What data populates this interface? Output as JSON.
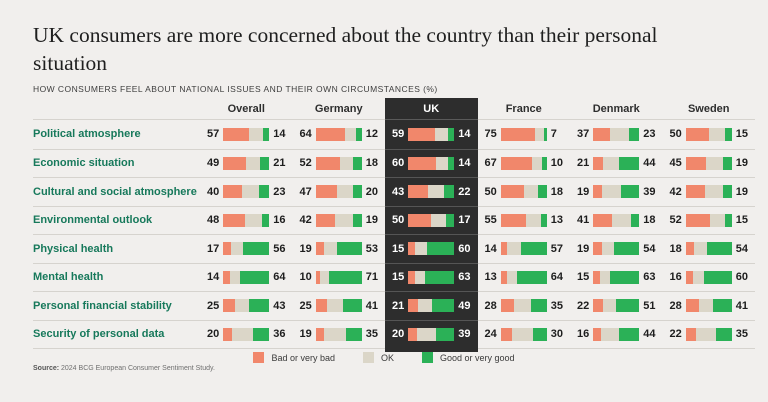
{
  "header": {
    "title": "UK consumers are more concerned about the country than their personal situation",
    "subtitle": "HOW CONSUMERS FEEL ABOUT NATIONAL ISSUES AND THEIR OWN CIRCUMSTANCES (%)"
  },
  "chart_data": {
    "type": "bar",
    "variant": "horizontal-100pct-stacked-small-multiples",
    "unit": "%",
    "columns": [
      "Overall",
      "Germany",
      "UK",
      "France",
      "Denmark",
      "Sweden"
    ],
    "highlighted_column": "UK",
    "segment_keys": [
      "bad",
      "ok",
      "good"
    ],
    "note": "ok = 100 - bad - good",
    "rows": [
      {
        "label": "Political atmosphere",
        "values": [
          {
            "bad": 57,
            "good": 14
          },
          {
            "bad": 64,
            "good": 12
          },
          {
            "bad": 59,
            "good": 14
          },
          {
            "bad": 75,
            "good": 7
          },
          {
            "bad": 37,
            "good": 23
          },
          {
            "bad": 50,
            "good": 15
          }
        ]
      },
      {
        "label": "Economic situation",
        "values": [
          {
            "bad": 49,
            "good": 21
          },
          {
            "bad": 52,
            "good": 18
          },
          {
            "bad": 60,
            "good": 14
          },
          {
            "bad": 67,
            "good": 10
          },
          {
            "bad": 21,
            "good": 44
          },
          {
            "bad": 45,
            "good": 19
          }
        ]
      },
      {
        "label": "Cultural and social atmosphere",
        "values": [
          {
            "bad": 40,
            "good": 23
          },
          {
            "bad": 47,
            "good": 20
          },
          {
            "bad": 43,
            "good": 22
          },
          {
            "bad": 50,
            "good": 18
          },
          {
            "bad": 19,
            "good": 39
          },
          {
            "bad": 42,
            "good": 19
          }
        ]
      },
      {
        "label": "Environmental outlook",
        "values": [
          {
            "bad": 48,
            "good": 16
          },
          {
            "bad": 42,
            "good": 19
          },
          {
            "bad": 50,
            "good": 17
          },
          {
            "bad": 55,
            "good": 13
          },
          {
            "bad": 41,
            "good": 18
          },
          {
            "bad": 52,
            "good": 15
          }
        ]
      },
      {
        "label": "Physical health",
        "values": [
          {
            "bad": 17,
            "good": 56
          },
          {
            "bad": 19,
            "good": 53
          },
          {
            "bad": 15,
            "good": 60
          },
          {
            "bad": 14,
            "good": 57
          },
          {
            "bad": 19,
            "good": 54
          },
          {
            "bad": 18,
            "good": 54
          }
        ]
      },
      {
        "label": "Mental health",
        "values": [
          {
            "bad": 14,
            "good": 64
          },
          {
            "bad": 10,
            "good": 71
          },
          {
            "bad": 15,
            "good": 63
          },
          {
            "bad": 13,
            "good": 64
          },
          {
            "bad": 15,
            "good": 63
          },
          {
            "bad": 16,
            "good": 60
          }
        ]
      },
      {
        "label": "Personal financial stability",
        "values": [
          {
            "bad": 25,
            "good": 43
          },
          {
            "bad": 25,
            "good": 41
          },
          {
            "bad": 21,
            "good": 49
          },
          {
            "bad": 28,
            "good": 35
          },
          {
            "bad": 22,
            "good": 51
          },
          {
            "bad": 28,
            "good": 41
          }
        ]
      },
      {
        "label": "Security of personal data",
        "values": [
          {
            "bad": 20,
            "good": 36
          },
          {
            "bad": 19,
            "good": 35
          },
          {
            "bad": 20,
            "good": 39
          },
          {
            "bad": 24,
            "good": 30
          },
          {
            "bad": 16,
            "good": 44
          },
          {
            "bad": 22,
            "good": 35
          }
        ]
      }
    ],
    "legend": [
      {
        "key": "bad",
        "label": "Bad or very bad"
      },
      {
        "key": "ok",
        "label": "OK"
      },
      {
        "key": "good",
        "label": "Good or very good"
      }
    ]
  },
  "colors": {
    "bad": "#F1876B",
    "ok": "#DBD6C8",
    "good": "#2BB157",
    "highlight_bg": "#2D2D2D",
    "row_label": "#17795B",
    "background": "#F1EFED"
  },
  "footer": {
    "source_label": "Source:",
    "source_text": " 2024 BCG European Consumer Sentiment Study."
  }
}
